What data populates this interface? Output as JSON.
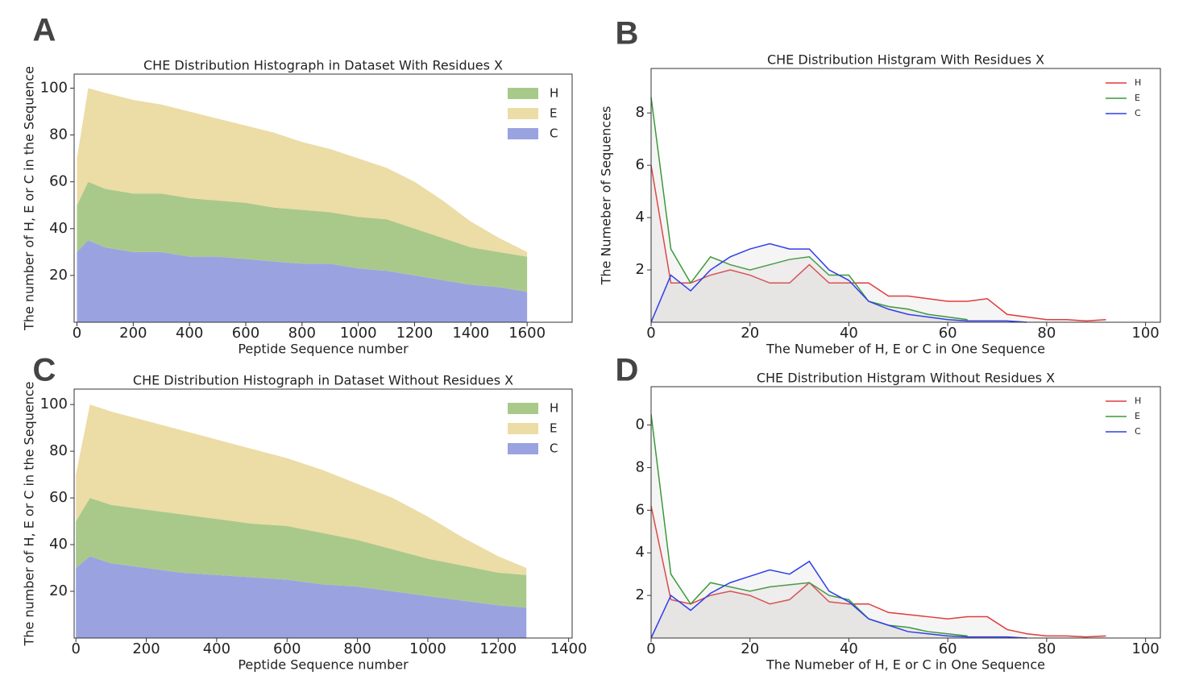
{
  "chart_data": [
    {
      "type": "stacked_area",
      "label": "A",
      "title": "CHE Distribution Histograph in Dataset With Residues X",
      "x_label": "Peptide Sequence number",
      "y_label": "The number of H, E or C in the Sequence",
      "x": [
        0,
        40,
        100,
        200,
        300,
        400,
        500,
        600,
        700,
        800,
        900,
        1000,
        1100,
        1200,
        1300,
        1400,
        1500,
        1600
      ],
      "series": [
        {
          "name": "H",
          "color": "#a9c98a",
          "values": [
            20,
            25,
            25,
            25,
            25,
            25,
            24,
            24,
            23,
            23,
            22,
            22,
            22,
            20,
            18,
            16,
            15,
            15
          ]
        },
        {
          "name": "E",
          "color": "#ecdca6",
          "values": [
            20,
            40,
            41,
            40,
            38,
            37,
            35,
            33,
            32,
            29,
            27,
            25,
            22,
            20,
            16,
            11,
            6,
            2
          ]
        },
        {
          "name": "C",
          "color": "#9aa3e0",
          "values": [
            30,
            35,
            32,
            30,
            30,
            28,
            28,
            27,
            26,
            25,
            25,
            23,
            22,
            20,
            18,
            16,
            15,
            13
          ]
        }
      ],
      "stack_order": [
        "C",
        "H",
        "E"
      ],
      "xlim": [
        -10,
        1760
      ],
      "ylim": [
        0,
        106
      ],
      "xticks": [
        0,
        200,
        400,
        600,
        800,
        1000,
        1200,
        1400,
        1600
      ],
      "yticks": [
        20,
        40,
        60,
        80,
        100
      ]
    },
    {
      "type": "line",
      "label": "B",
      "title": "CHE Distribution Histgram With Residues X",
      "x_label": "The Numeber of H, E or C in One Sequence",
      "y_label": "The Numeber of Sequences",
      "x": [
        0,
        4,
        8,
        12,
        16,
        20,
        24,
        28,
        32,
        36,
        40,
        44,
        48,
        52,
        56,
        60,
        64,
        68,
        72,
        76,
        80,
        84,
        88,
        92
      ],
      "series": [
        {
          "name": "H",
          "color": "#e03c3c",
          "values": [
            6,
            1.5,
            1.5,
            1.8,
            2,
            1.8,
            1.5,
            1.5,
            2.2,
            1.5,
            1.5,
            1.5,
            1,
            1,
            0.9,
            0.8,
            0.8,
            0.9,
            0.3,
            0.2,
            0.1,
            0.1,
            0.05,
            0.1
          ]
        },
        {
          "name": "E",
          "color": "#3a9a3a",
          "values": [
            8.6,
            2.8,
            1.5,
            2.5,
            2.2,
            2,
            2.2,
            2.4,
            2.5,
            1.8,
            1.8,
            0.8,
            0.6,
            0.5,
            0.3,
            0.2,
            0.1,
            null,
            null,
            null,
            null,
            null,
            null,
            null
          ]
        },
        {
          "name": "C",
          "color": "#2f3fe8",
          "values": [
            0,
            1.8,
            1.2,
            2,
            2.5,
            2.8,
            3,
            2.8,
            2.8,
            2,
            1.6,
            0.8,
            0.5,
            0.3,
            0.2,
            0.1,
            0.05,
            0.05,
            0.05,
            0,
            null,
            null,
            null,
            null
          ]
        }
      ],
      "xlim": [
        0,
        103
      ],
      "ylim": [
        0,
        9.7
      ],
      "xticks": [
        0,
        20,
        40,
        60,
        80,
        100
      ],
      "yticks": [
        2,
        4,
        6,
        8
      ]
    },
    {
      "type": "stacked_area",
      "label": "C",
      "title": "CHE Distribution Histograph in Dataset Without Residues X",
      "x_label": "Peptide Sequence number",
      "y_label": "The number of H, E or C in the Sequence",
      "x": [
        0,
        40,
        100,
        200,
        300,
        400,
        500,
        600,
        700,
        800,
        900,
        1000,
        1100,
        1200,
        1280
      ],
      "series": [
        {
          "name": "H",
          "color": "#a9c98a",
          "values": [
            20,
            25,
            25,
            25,
            25,
            24,
            23,
            23,
            22,
            20,
            18,
            16,
            15,
            14,
            14
          ]
        },
        {
          "name": "E",
          "color": "#ecdca6",
          "values": [
            20,
            40,
            40,
            38,
            36,
            34,
            32,
            29,
            27,
            24,
            22,
            18,
            12,
            7,
            3
          ]
        },
        {
          "name": "C",
          "color": "#9aa3e0",
          "values": [
            30,
            35,
            32,
            30,
            28,
            27,
            26,
            25,
            23,
            22,
            20,
            18,
            16,
            14,
            13
          ]
        }
      ],
      "stack_order": [
        "C",
        "H",
        "E"
      ],
      "xlim": [
        -5,
        1410
      ],
      "ylim": [
        0,
        106.6
      ],
      "xticks": [
        0,
        200,
        400,
        600,
        800,
        1000,
        1200,
        1400
      ],
      "yticks": [
        20,
        40,
        60,
        80,
        100
      ]
    },
    {
      "type": "line",
      "label": "D",
      "title": "CHE Distribution Histgram Without Residues X",
      "x_label": "The Numeber of H, E or C in One Sequence",
      "x": [
        0,
        4,
        8,
        12,
        16,
        20,
        24,
        28,
        32,
        36,
        40,
        44,
        48,
        52,
        56,
        60,
        64,
        68,
        72,
        76,
        80,
        84,
        88,
        92
      ],
      "series": [
        {
          "name": "H",
          "color": "#e03c3c",
          "values": [
            6.2,
            1.8,
            1.6,
            2,
            2.2,
            2,
            1.6,
            1.8,
            2.6,
            1.7,
            1.6,
            1.6,
            1.2,
            1.1,
            1,
            0.9,
            1,
            1,
            0.4,
            0.2,
            0.1,
            0.1,
            0.05,
            0.1
          ]
        },
        {
          "name": "E",
          "color": "#3a9a3a",
          "values": [
            10.5,
            3,
            1.6,
            2.6,
            2.4,
            2.2,
            2.4,
            2.5,
            2.6,
            2,
            1.8,
            0.9,
            0.6,
            0.5,
            0.3,
            0.2,
            0.1,
            null,
            null,
            null,
            null,
            null,
            null,
            null
          ]
        },
        {
          "name": "C",
          "color": "#2f3fe8",
          "values": [
            0,
            2,
            1.3,
            2.1,
            2.6,
            2.9,
            3.2,
            3,
            3.6,
            2.2,
            1.7,
            0.9,
            0.6,
            0.3,
            0.2,
            0.1,
            0.05,
            0.05,
            0.05,
            0,
            null,
            null,
            null,
            null
          ]
        }
      ],
      "xlim": [
        0,
        103
      ],
      "ylim": [
        0,
        11.8
      ],
      "xticks": [
        0,
        20,
        40,
        60,
        80,
        100
      ],
      "yticks": [
        2,
        4,
        6,
        8,
        {
          "value": 10,
          "label": "0"
        }
      ]
    }
  ]
}
